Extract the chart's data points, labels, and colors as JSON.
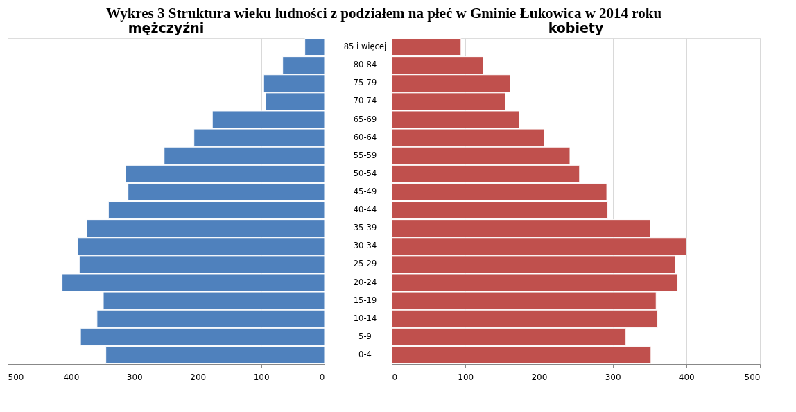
{
  "chart_data": [
    {
      "type": "bar",
      "orientation": "horizontal",
      "title": "Wykres 3 Struktura wieku ludności z podziałem na płeć w Gminie Łukowica w 2014 roku",
      "subtitle": "mężczyźni",
      "categories": [
        "85 i więcej",
        "80-84",
        "75-79",
        "70-74",
        "65-69",
        "60-64",
        "55-59",
        "50-54",
        "45-49",
        "40-44",
        "35-39",
        "30-34",
        "25-29",
        "20-24",
        "15-19",
        "10-14",
        "5-9",
        "0-4"
      ],
      "values": [
        31,
        66,
        96,
        93,
        177,
        206,
        253,
        314,
        310,
        341,
        375,
        390,
        387,
        414,
        349,
        359,
        385,
        345
      ],
      "color": "#4f81bd",
      "xlim": [
        500,
        0
      ],
      "xticks": [
        500,
        400,
        300,
        200,
        100,
        0
      ],
      "grid": "x"
    },
    {
      "type": "bar",
      "orientation": "horizontal",
      "title": "kobiety",
      "categories": [
        null,
        null,
        null,
        null,
        null,
        null,
        null,
        null,
        null,
        null,
        null,
        null,
        null,
        null,
        null,
        null,
        null,
        null
      ],
      "values": [
        94,
        124,
        161,
        154,
        173,
        207,
        242,
        255,
        292,
        293,
        351,
        400,
        385,
        388,
        359,
        361,
        318,
        352
      ],
      "color": "#c0504d",
      "xlim": [
        0,
        500
      ],
      "xticks": [
        0,
        100,
        200,
        300,
        400,
        500
      ],
      "grid": "x",
      "tick_labels": "x"
    }
  ]
}
